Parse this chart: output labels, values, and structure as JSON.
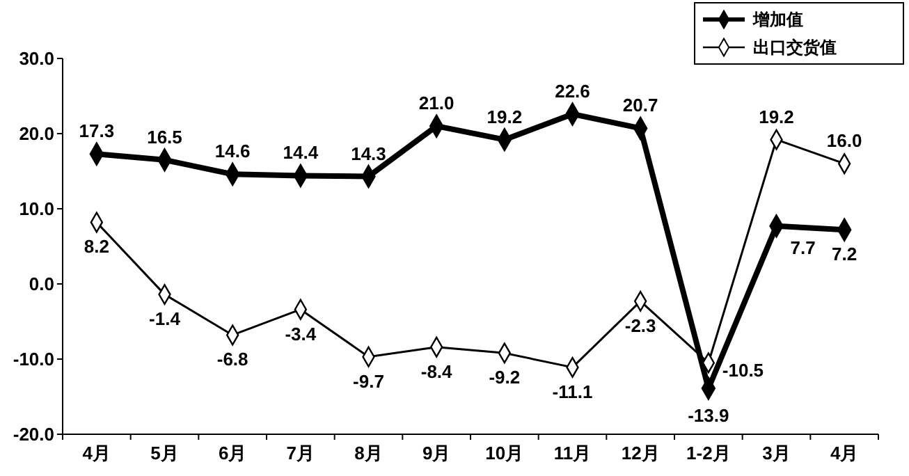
{
  "chart_data": {
    "type": "line",
    "categories": [
      "4月",
      "5月",
      "6月",
      "7月",
      "8月",
      "9月",
      "10月",
      "11月",
      "12月",
      "1-2月",
      "3月",
      "4月"
    ],
    "series": [
      {
        "name": "增加值",
        "color": "#000000",
        "marker": "diamond",
        "values": [
          17.3,
          16.5,
          14.6,
          14.4,
          14.3,
          21.0,
          19.2,
          22.6,
          20.7,
          -13.9,
          7.7,
          7.2
        ],
        "value_labels": [
          "17.3",
          "16.5",
          "14.6",
          "14.4",
          "14.3",
          "21.0",
          "19.2",
          "22.6",
          "20.7",
          "-13.9",
          "7.7",
          "7.2"
        ]
      },
      {
        "name": "出口交货值",
        "color": "#000000",
        "marker": "diamond",
        "values": [
          8.2,
          -1.4,
          -6.8,
          -3.4,
          -9.7,
          -8.4,
          -9.2,
          -11.1,
          -2.3,
          -10.5,
          19.2,
          16.0
        ],
        "value_labels": [
          "8.2",
          "-1.4",
          "-6.8",
          "-3.4",
          "-9.7",
          "-8.4",
          "-9.2",
          "-11.1",
          "-2.3",
          "-10.5",
          "19.2",
          "16.0"
        ]
      }
    ],
    "ylim": [
      -20,
      30
    ],
    "yticks": [
      {
        "value": -20,
        "label": "-20.0"
      },
      {
        "value": -10,
        "label": "-10.0"
      },
      {
        "value": 0,
        "label": "0.0"
      },
      {
        "value": 10,
        "label": "10.0"
      },
      {
        "value": 20,
        "label": "20.0"
      },
      {
        "value": 30,
        "label": "30.0"
      }
    ],
    "grid": false,
    "legend": "top right"
  }
}
